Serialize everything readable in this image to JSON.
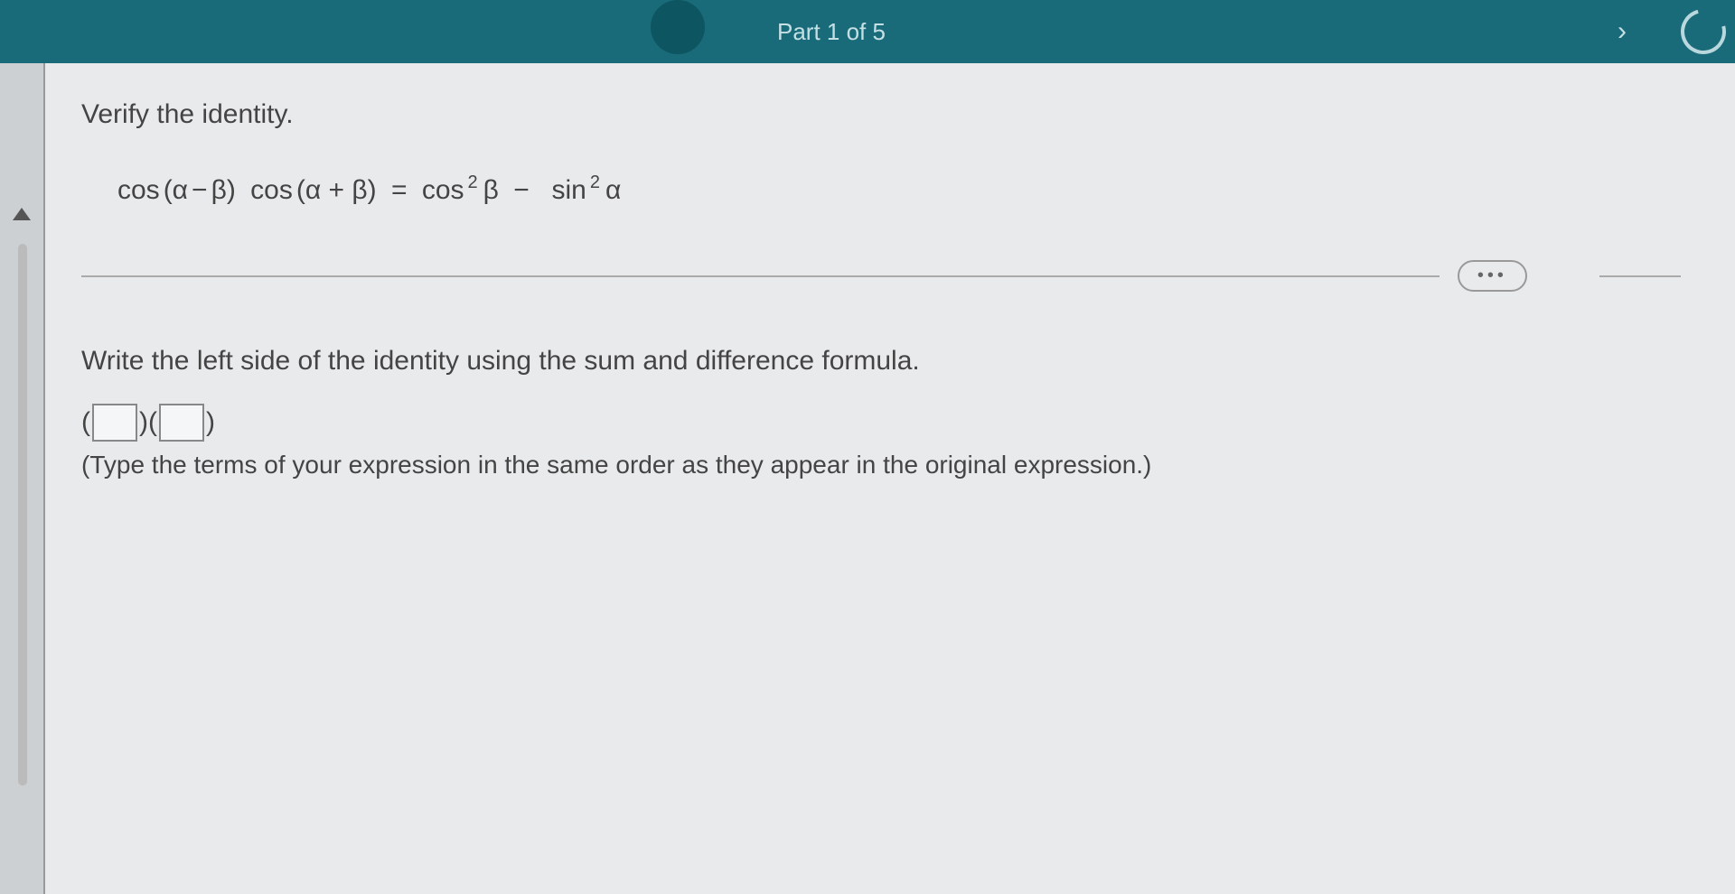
{
  "header": {
    "part_label": "Part 1 of 5"
  },
  "question": {
    "prompt": "Verify the identity.",
    "equation": {
      "lhs_cos1": "cos",
      "lhs_paren1_open": "(α",
      "lhs_minus": "−",
      "lhs_beta1": "β)",
      "lhs_cos2": "cos",
      "lhs_paren2": "(α + β)",
      "eq": "=",
      "rhs_cos": "cos",
      "rhs_sup2a": "2",
      "rhs_beta": "β",
      "rhs_minus": "−",
      "rhs_sin": "sin",
      "rhs_sup2b": "2",
      "rhs_alpha": "α"
    }
  },
  "more_button": "•••",
  "instruction": "Write the left side of the identity using the sum and difference formula.",
  "answer": {
    "open1": "(",
    "close1": ")(",
    "close2": ")"
  },
  "hint": "(Type the terms of your expression in the same order as they appear in the original expression.)",
  "colors": {
    "header_bg": "#1a6b7a",
    "header_text": "#c5e0e5",
    "body_bg": "#e8eaec",
    "text": "#444444",
    "border": "#999999"
  }
}
